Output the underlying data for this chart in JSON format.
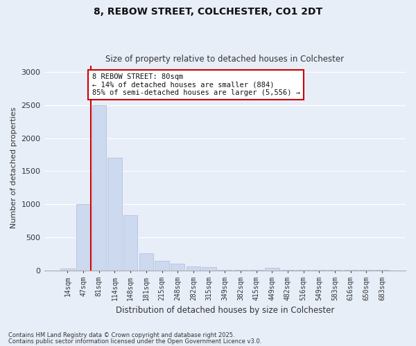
{
  "title1": "8, REBOW STREET, COLCHESTER, CO1 2DT",
  "title2": "Size of property relative to detached houses in Colchester",
  "xlabel": "Distribution of detached houses by size in Colchester",
  "ylabel": "Number of detached properties",
  "categories": [
    "14sqm",
    "47sqm",
    "81sqm",
    "114sqm",
    "148sqm",
    "181sqm",
    "215sqm",
    "248sqm",
    "282sqm",
    "315sqm",
    "349sqm",
    "382sqm",
    "415sqm",
    "449sqm",
    "482sqm",
    "516sqm",
    "549sqm",
    "583sqm",
    "616sqm",
    "650sqm",
    "683sqm"
  ],
  "values": [
    30,
    1000,
    2500,
    1700,
    830,
    260,
    145,
    100,
    65,
    50,
    5,
    5,
    5,
    40,
    5,
    5,
    5,
    5,
    5,
    5,
    5
  ],
  "bar_color": "#ccd9ee",
  "bar_edge_color": "#aabbdd",
  "vline_color": "#cc0000",
  "vline_pos": 1.5,
  "annotation_text": "8 REBOW STREET: 80sqm\n← 14% of detached houses are smaller (884)\n85% of semi-detached houses are larger (5,556) →",
  "annotation_box_color": "#cc0000",
  "ylim": [
    0,
    3100
  ],
  "yticks": [
    0,
    500,
    1000,
    1500,
    2000,
    2500,
    3000
  ],
  "footnote1": "Contains HM Land Registry data © Crown copyright and database right 2025.",
  "footnote2": "Contains public sector information licensed under the Open Government Licence v3.0.",
  "bg_color": "#e8eef8",
  "plot_bg_color": "#e8eef8",
  "grid_color": "#ffffff"
}
